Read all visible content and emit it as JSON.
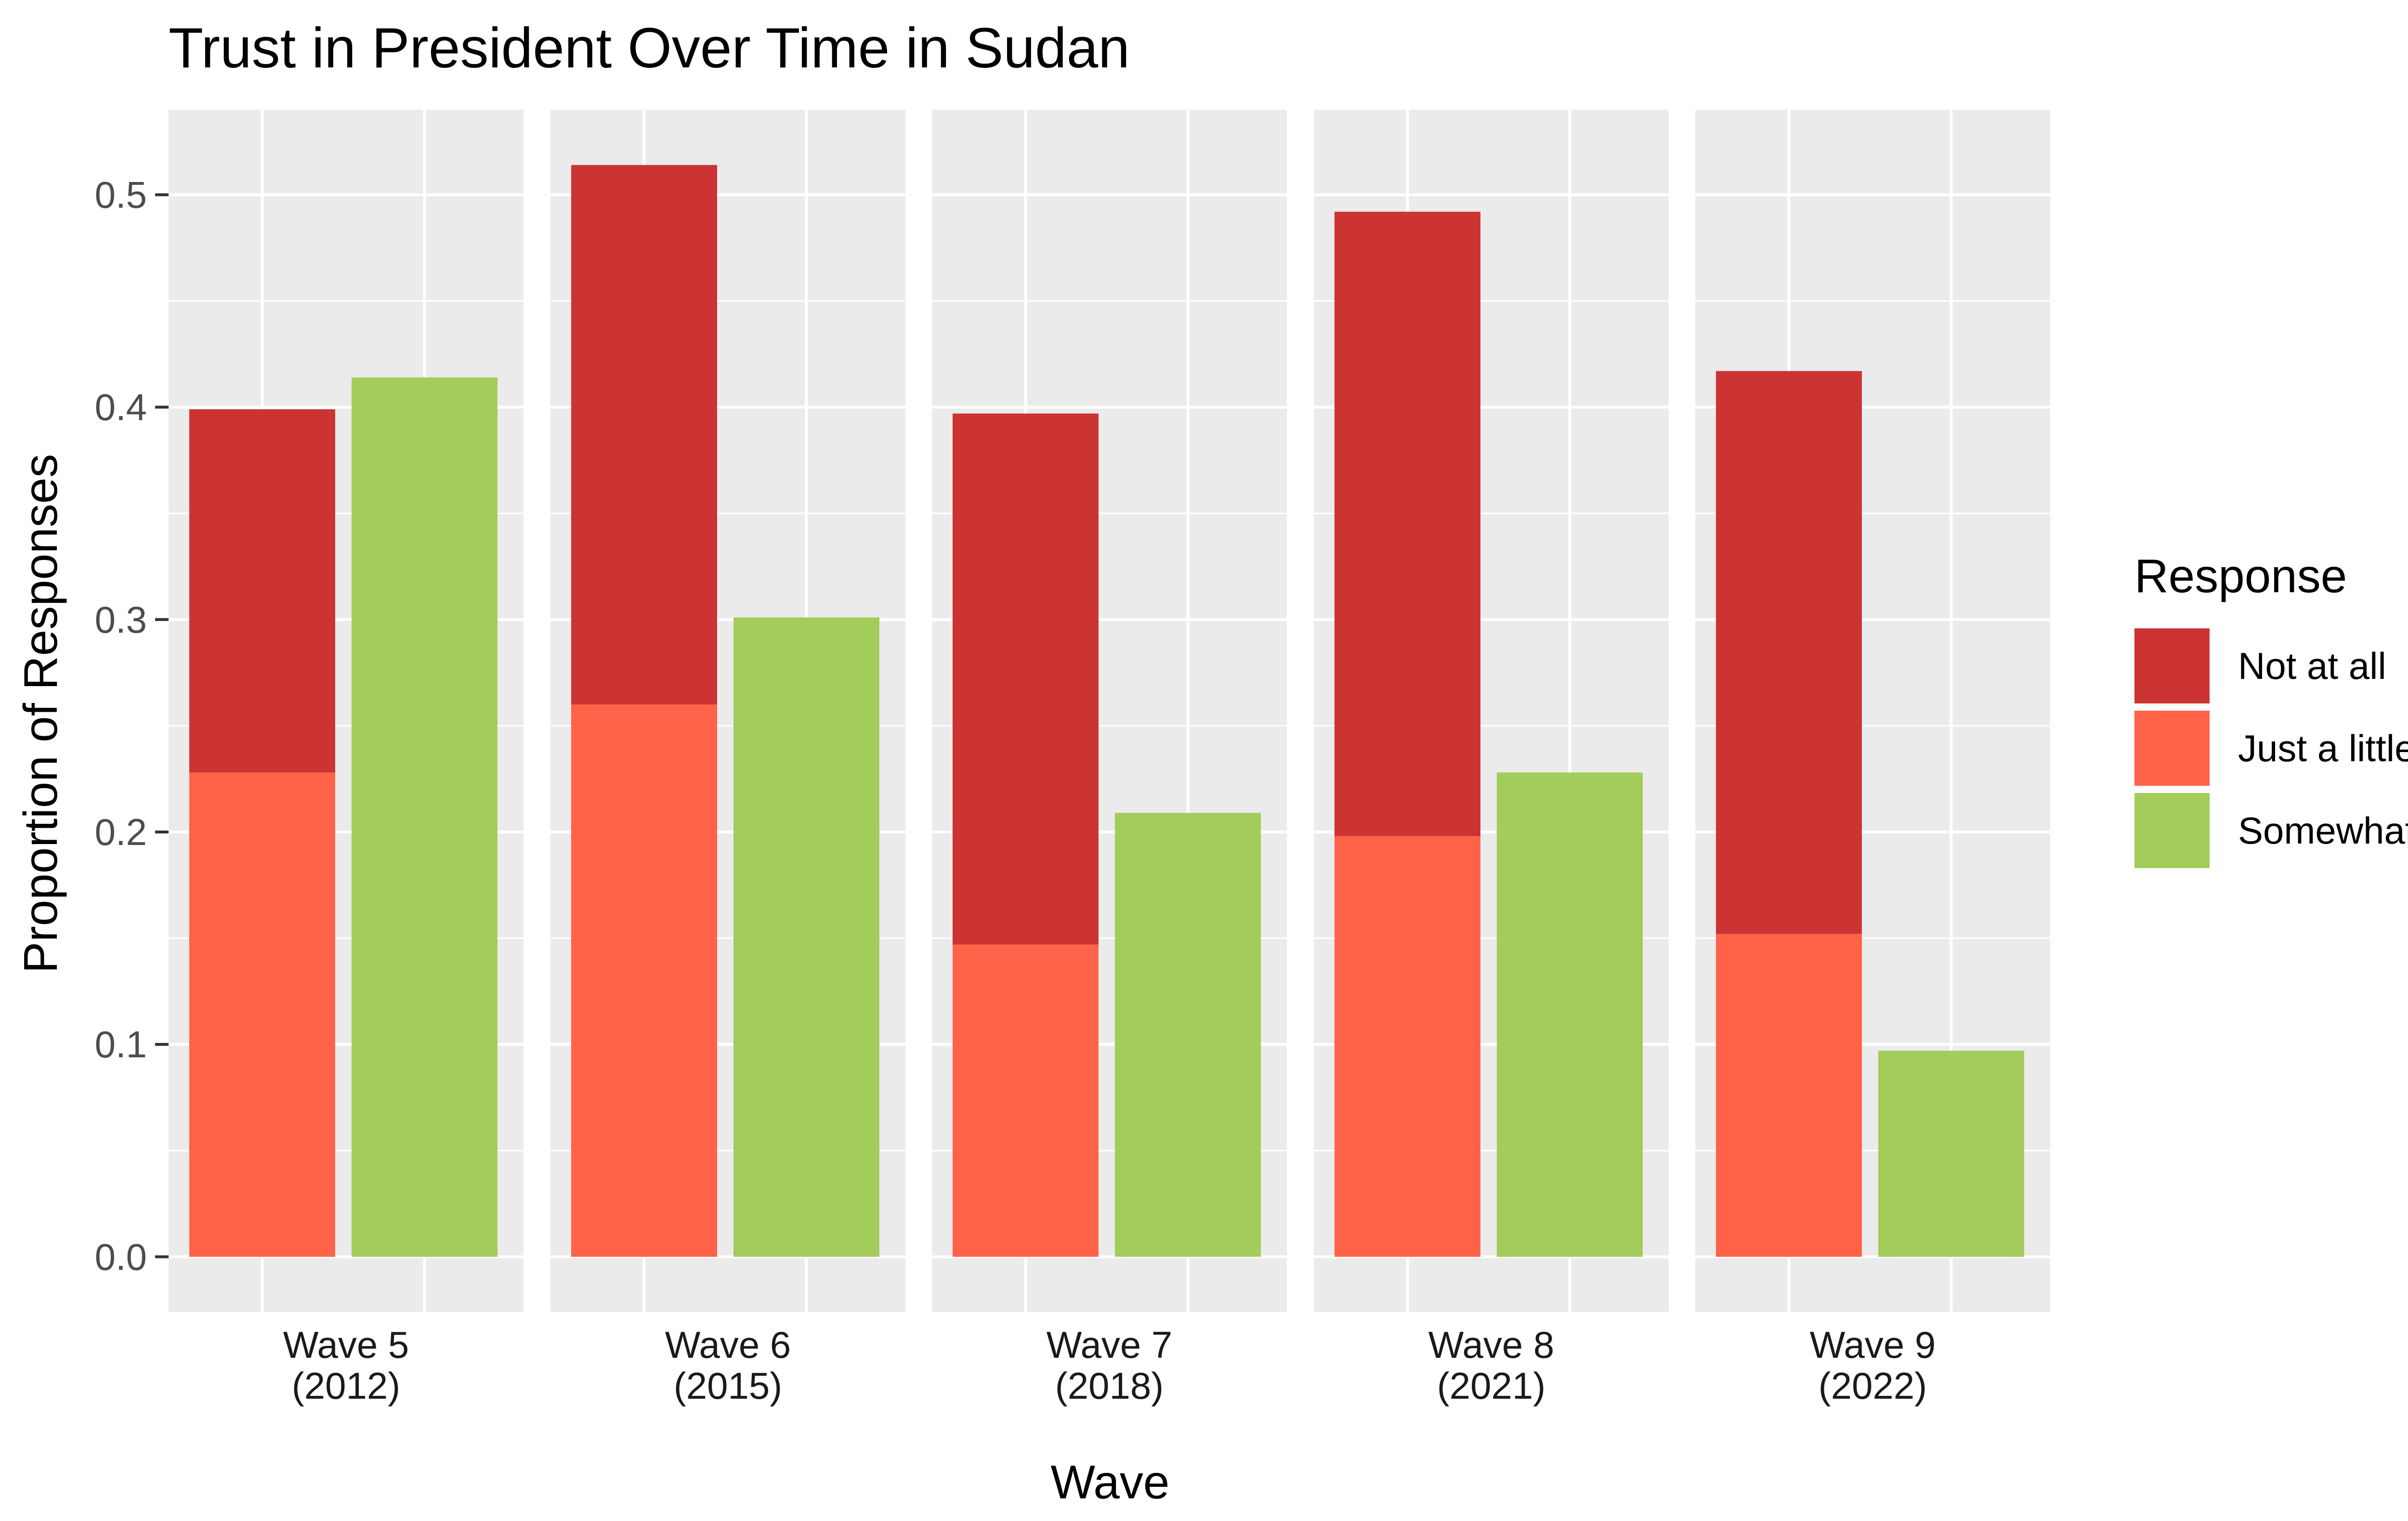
{
  "chart_data": {
    "type": "bar",
    "title": "Trust in President Over Time in Sudan",
    "xlabel": "Wave",
    "ylabel": "Proportion of Responses",
    "ylim": [
      -0.026,
      0.54
    ],
    "yticks": [
      "0.0",
      "0.1",
      "0.2",
      "0.3",
      "0.4",
      "0.5"
    ],
    "grid": true,
    "legend": {
      "title": "Response",
      "position": "right",
      "items": [
        {
          "name": "Not at all",
          "color": "#cc3333"
        },
        {
          "name": "Just a little",
          "color": "#ff6347"
        },
        {
          "name": "Somewhat",
          "color": "#a3cc5a"
        }
      ]
    },
    "facets": [
      {
        "label_line1": "Wave 5",
        "label_line2": "(2012)",
        "not_at_all": 0.171,
        "just_a_little": 0.228,
        "somewhat": 0.414
      },
      {
        "label_line1": "Wave 6",
        "label_line2": "(2015)",
        "not_at_all": 0.254,
        "just_a_little": 0.26,
        "somewhat": 0.301
      },
      {
        "label_line1": "Wave 7",
        "label_line2": "(2018)",
        "not_at_all": 0.25,
        "just_a_little": 0.147,
        "somewhat": 0.209
      },
      {
        "label_line1": "Wave 8",
        "label_line2": "(2021)",
        "not_at_all": 0.294,
        "just_a_little": 0.198,
        "somewhat": 0.228
      },
      {
        "label_line1": "Wave 9",
        "label_line2": "(2022)",
        "not_at_all": 0.265,
        "just_a_little": 0.152,
        "somewhat": 0.097
      }
    ]
  }
}
